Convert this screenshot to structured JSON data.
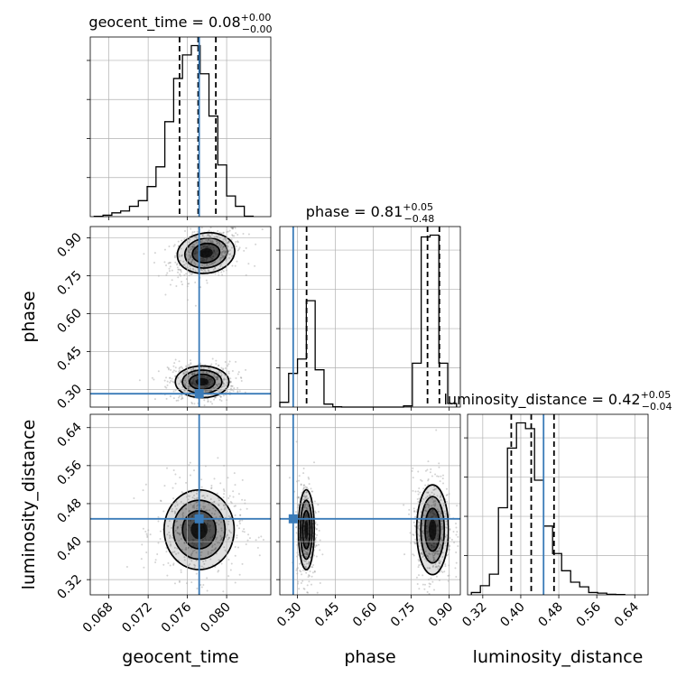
{
  "chart_data": {
    "type": "corner",
    "parameters": [
      "geocent_time",
      "phase",
      "luminosity_distance"
    ],
    "titles": {
      "geocent_time": {
        "label": "geocent_time",
        "median": "0.08",
        "plus": "+0.00",
        "minus": "−0.00"
      },
      "phase": {
        "label": "phase",
        "median": "0.81",
        "plus": "+0.05",
        "minus": "−0.48"
      },
      "luminosity_distance": {
        "label": "luminosity_distance",
        "median": "0.42",
        "plus": "+0.05",
        "minus": "−0.04"
      }
    },
    "axes": {
      "geocent_time": {
        "lim": [
          0.0661,
          0.0845
        ],
        "ticks": [
          "0.068",
          "0.072",
          "0.076",
          "0.080"
        ],
        "tick_values": [
          0.068,
          0.072,
          0.076,
          0.08
        ]
      },
      "phase": {
        "lim": [
          0.23,
          0.945
        ],
        "ticks": [
          "0.30",
          "0.45",
          "0.60",
          "0.75",
          "0.90"
        ],
        "tick_values": [
          0.3,
          0.45,
          0.6,
          0.75,
          0.9
        ]
      },
      "luminosity_distance": {
        "lim": [
          0.288,
          0.668
        ],
        "ticks": [
          "0.32",
          "0.40",
          "0.48",
          "0.56",
          "0.64"
        ],
        "tick_values": [
          0.32,
          0.4,
          0.48,
          0.56,
          0.64
        ]
      }
    },
    "truths": {
      "geocent_time": 0.0772,
      "phase": 0.283,
      "luminosity_distance": 0.448
    },
    "quantiles": {
      "geocent_time": [
        0.0752,
        0.0771,
        0.0789
      ],
      "phase": [
        0.336,
        0.815,
        0.862
      ],
      "luminosity_distance": [
        0.38,
        0.422,
        0.47
      ]
    },
    "histograms": {
      "geocent_time": {
        "edges": [
          0.0665,
          0.0674,
          0.0683,
          0.0692,
          0.0701,
          0.071,
          0.0719,
          0.0728,
          0.0737,
          0.0746,
          0.0755,
          0.0764,
          0.0773,
          0.0782,
          0.0791,
          0.08,
          0.0809,
          0.0818,
          0.0827
        ],
        "counts": [
          0.3,
          1.5,
          4,
          6,
          11,
          17,
          32,
          53,
          101,
          147,
          172,
          182,
          152,
          107,
          55,
          22,
          11,
          0.5
        ]
      },
      "phase": {
        "edges": [
          0.23,
          0.265,
          0.3,
          0.335,
          0.37,
          0.405,
          0.44,
          0.475,
          0.51,
          0.545,
          0.58,
          0.615,
          0.65,
          0.685,
          0.72,
          0.755,
          0.79,
          0.825,
          0.86,
          0.895,
          0.93
        ],
        "counts": [
          8,
          56,
          80,
          177,
          62,
          5,
          0.5,
          0,
          0,
          0,
          0,
          0,
          0,
          0,
          2,
          73,
          283,
          286,
          73,
          6
        ]
      },
      "luminosity_distance": {
        "edges": [
          0.296,
          0.315,
          0.334,
          0.353,
          0.372,
          0.391,
          0.41,
          0.429,
          0.448,
          0.467,
          0.486,
          0.505,
          0.524,
          0.543,
          0.562,
          0.581,
          0.6,
          0.619
        ],
        "counts": [
          2,
          8,
          18,
          76,
          128,
          150,
          145,
          100,
          60,
          36,
          21,
          11,
          7,
          2,
          1.5,
          0.5,
          0.3
        ]
      }
    },
    "scatter_clusters": [
      {
        "x": "geocent_time",
        "y": "phase",
        "center": [
          0.0779,
          0.84
        ],
        "spread": [
          0.0014,
          0.038
        ],
        "tilt": 0.35
      },
      {
        "x": "geocent_time",
        "y": "phase",
        "center": [
          0.0775,
          0.33
        ],
        "spread": [
          0.0013,
          0.03
        ],
        "tilt": 0
      },
      {
        "x": "geocent_time",
        "y": "luminosity_distance",
        "center": [
          0.0772,
          0.425
        ],
        "spread": [
          0.0017,
          0.04
        ],
        "tilt": 0
      },
      {
        "x": "phase",
        "y": "luminosity_distance",
        "center": [
          0.335,
          0.425
        ],
        "spread": [
          0.015,
          0.04
        ],
        "tilt": 0
      },
      {
        "x": "phase",
        "y": "luminosity_distance",
        "center": [
          0.835,
          0.425
        ],
        "spread": [
          0.03,
          0.045
        ],
        "tilt": 0
      }
    ],
    "colors": {
      "truth": "#3a7bb8",
      "scatter": "#808080",
      "density": "#000000"
    }
  }
}
